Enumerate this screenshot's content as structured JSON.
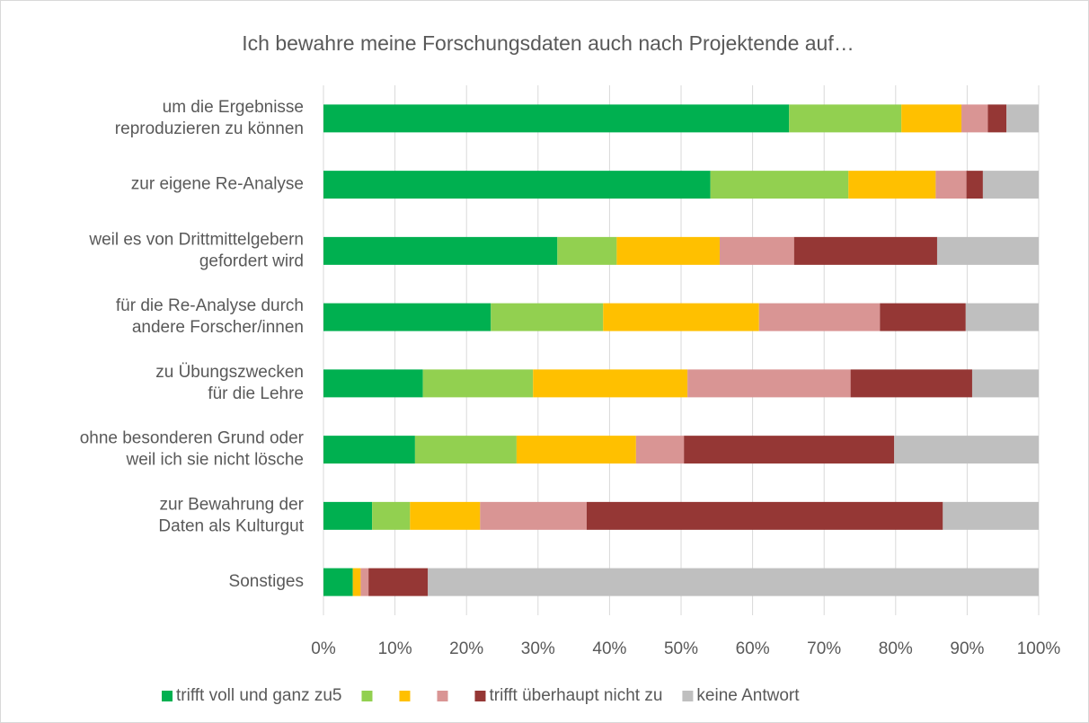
{
  "chart_data": {
    "type": "stacked_bar_horizontal",
    "title": "Ich bewahre meine Forschungsdaten auch nach Projektende auf…",
    "categories": [
      [
        "um die Ergebnisse",
        "reproduzieren zu können"
      ],
      [
        "zur eigene Re-Analyse"
      ],
      [
        "weil es von Drittmittelgebern",
        "gefordert wird"
      ],
      [
        "für die Re-Analyse durch",
        "andere Forscher/innen"
      ],
      [
        "zu Übungszwecken",
        "für die Lehre"
      ],
      [
        "ohne besonderen Grund oder",
        "weil ich sie nicht lösche"
      ],
      [
        "zur Bewahrung der",
        "Daten als Kulturgut"
      ],
      [
        "Sonstiges"
      ]
    ],
    "series": [
      {
        "name": "trifft voll und ganz zu5",
        "color": "#00b050",
        "values": [
          65.1,
          54.1,
          32.7,
          23.4,
          13.9,
          12.8,
          6.8,
          4.1
        ]
      },
      {
        "name": null,
        "color": "#92d050",
        "values": [
          15.7,
          19.3,
          8.3,
          15.7,
          15.4,
          14.2,
          5.3,
          0
        ]
      },
      {
        "name": null,
        "color": "#ffc000",
        "values": [
          8.4,
          12.2,
          14.4,
          21.8,
          21.6,
          16.7,
          9.8,
          1.1
        ]
      },
      {
        "name": null,
        "color": "#d99594",
        "values": [
          3.7,
          4.3,
          10.4,
          16.9,
          22.8,
          6.7,
          14.9,
          1.1
        ]
      },
      {
        "name": "trifft überhaupt nicht zu",
        "color": "#953735",
        "values": [
          2.6,
          2.3,
          20.0,
          12.0,
          17.0,
          29.4,
          49.8,
          8.3
        ]
      },
      {
        "name": "keine Antwort",
        "color": "#bfbfbf",
        "values": [
          4.5,
          7.8,
          14.2,
          10.2,
          9.3,
          20.2,
          13.4,
          85.4
        ]
      }
    ],
    "xlim": [
      0,
      100
    ],
    "xticks": [
      {
        "value": 0,
        "label": "0%"
      },
      {
        "value": 10,
        "label": "10%"
      },
      {
        "value": 20,
        "label": "20%"
      },
      {
        "value": 30,
        "label": "30%"
      },
      {
        "value": 40,
        "label": "40%"
      },
      {
        "value": 50,
        "label": "50%"
      },
      {
        "value": 60,
        "label": "60%"
      },
      {
        "value": 70,
        "label": "70%"
      },
      {
        "value": 80,
        "label": "80%"
      },
      {
        "value": 90,
        "label": "90%"
      },
      {
        "value": 100,
        "label": "100%"
      }
    ],
    "grid": true,
    "legend": "bottom"
  }
}
